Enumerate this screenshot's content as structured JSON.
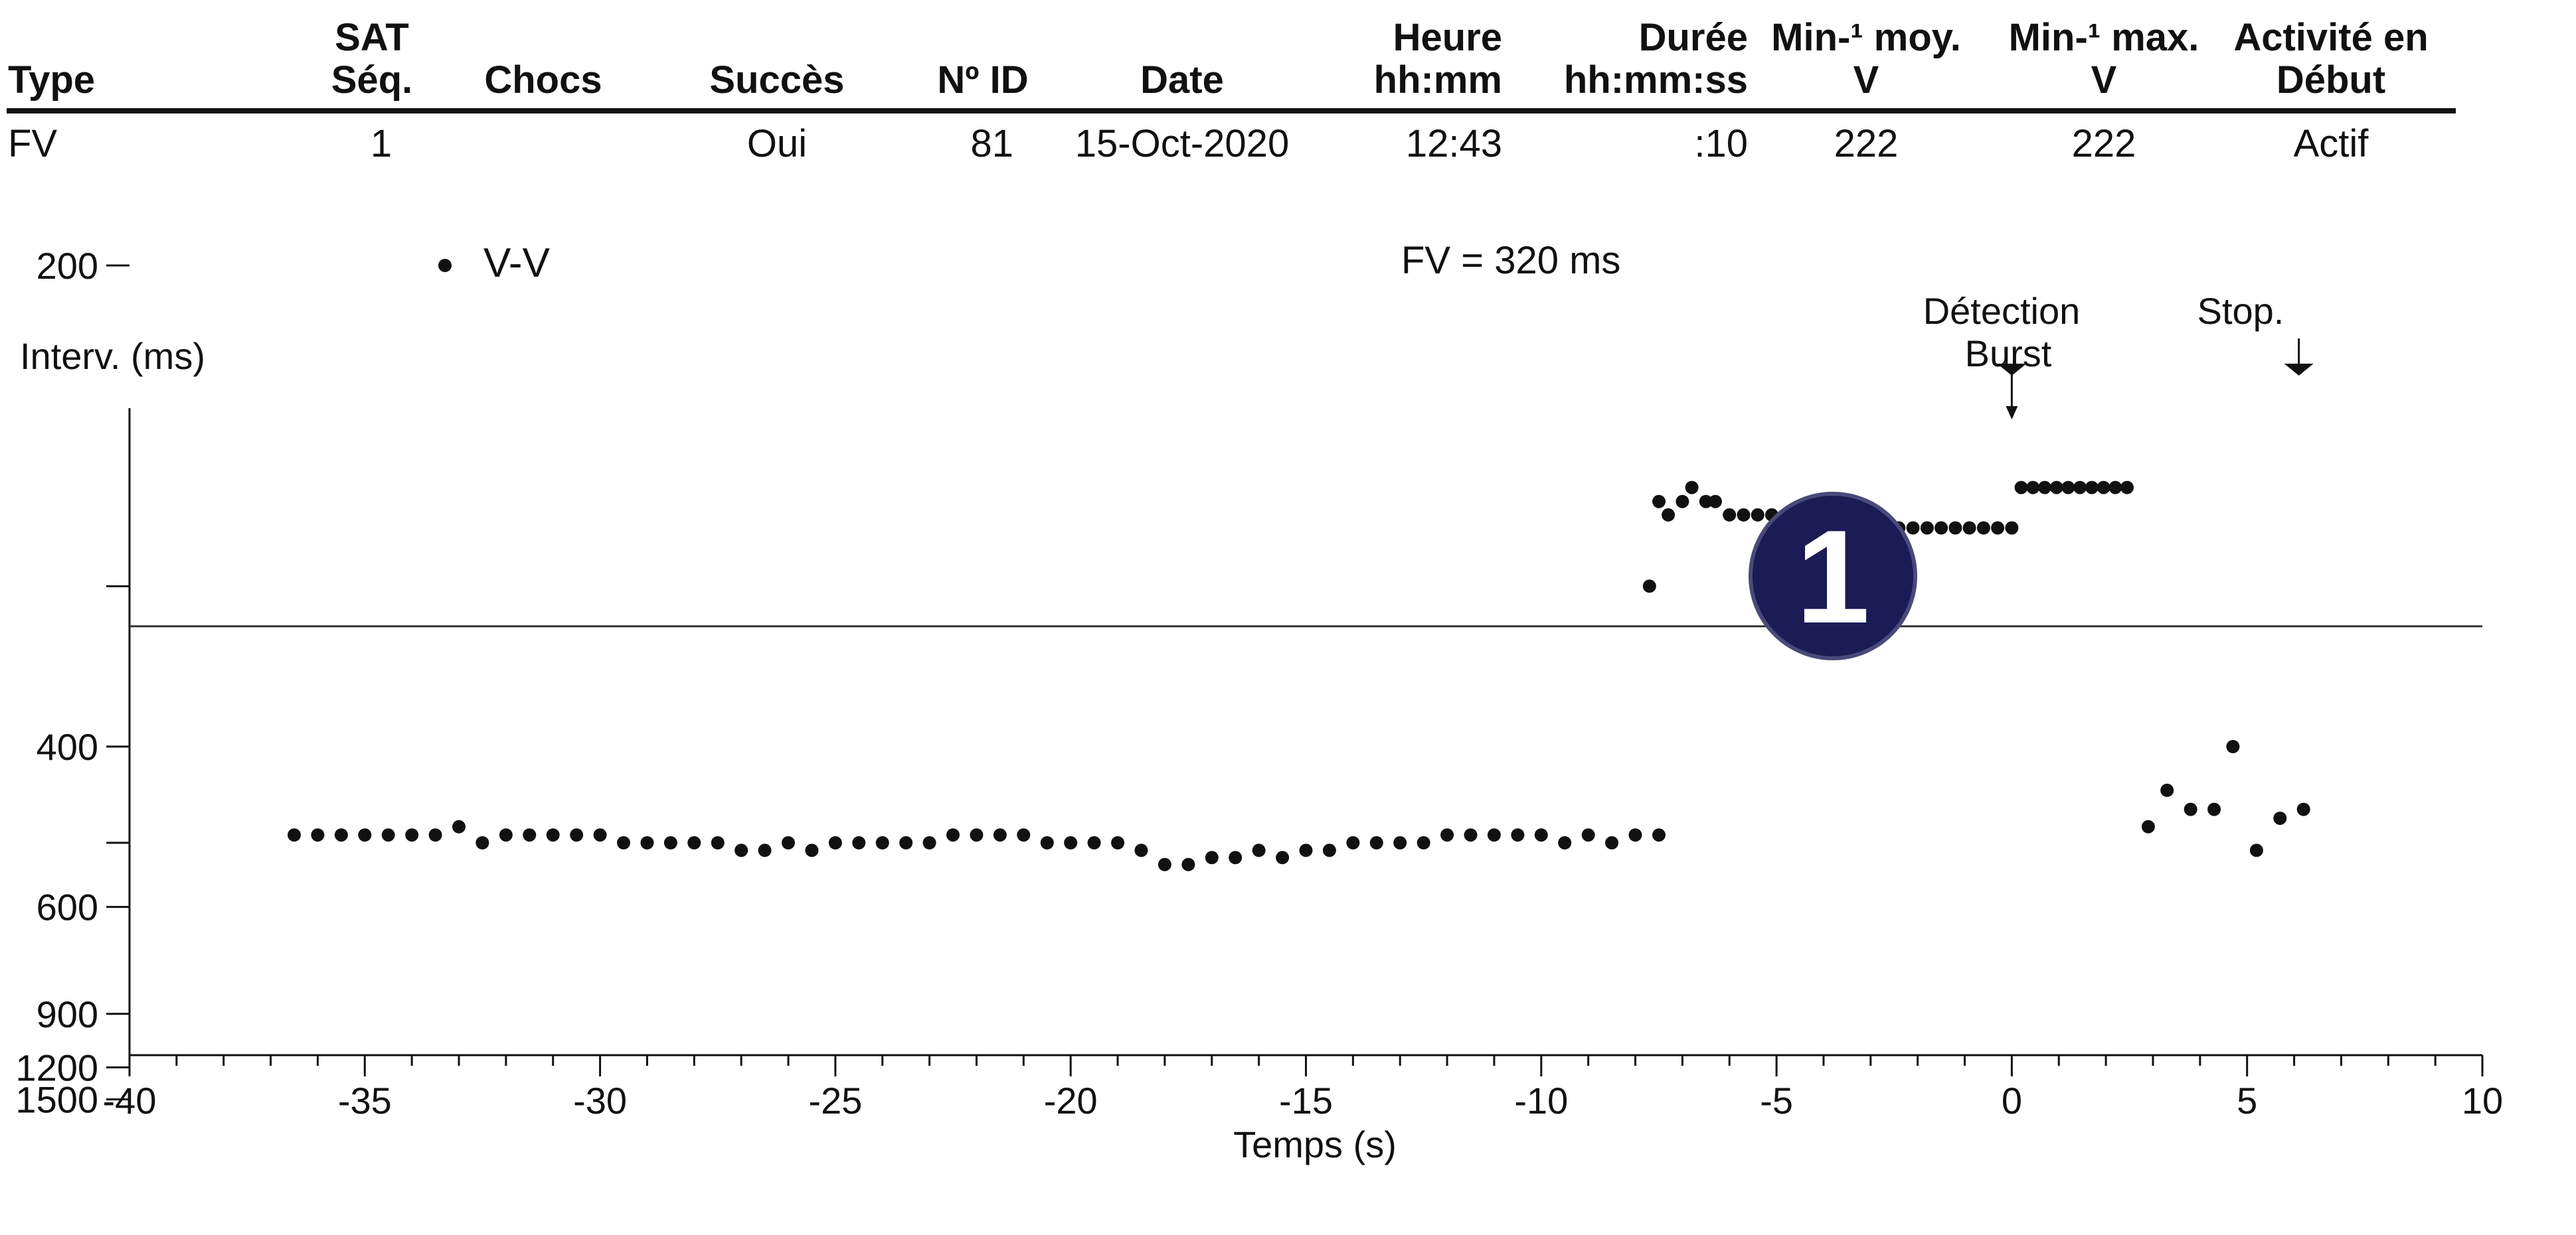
{
  "table": {
    "headers": [
      {
        "line1": "",
        "line2": "Type"
      },
      {
        "line1": "SAT",
        "line2": "Séq."
      },
      {
        "line1": "",
        "line2": "Chocs"
      },
      {
        "line1": "",
        "line2": "Succès"
      },
      {
        "line1": "",
        "line2": "Nº ID"
      },
      {
        "line1": "",
        "line2": "Date"
      },
      {
        "line1": "Heure",
        "line2": "hh:mm"
      },
      {
        "line1": "Durée",
        "line2": "hh:mm:ss"
      },
      {
        "line1": "Min-¹ moy.",
        "line2": "V"
      },
      {
        "line1": "Min-¹ max.",
        "line2": "V"
      },
      {
        "line1": "Activité en",
        "line2": "Début"
      }
    ],
    "row": [
      "FV",
      "1",
      "",
      "Oui",
      "81",
      "15-Oct-2020",
      "12:43",
      ":10",
      "222",
      "222",
      "Actif"
    ]
  },
  "legend": {
    "label": "V-V"
  },
  "fv_label": "FV = 320 ms",
  "badge": {
    "number": "1",
    "color": "#1b1b55"
  },
  "chart_data": {
    "type": "scatter",
    "xlabel": "Temps (s)",
    "ylabel": "Interv. (ms)",
    "xlim": [
      -40,
      10
    ],
    "xticks": [
      -40,
      -35,
      -30,
      -25,
      -20,
      -15,
      -10,
      -5,
      0,
      5,
      10
    ],
    "yscale": "reciprocal (rate-linear)",
    "ylim": [
      1500,
      150
    ],
    "yticks": [
      1500,
      1200,
      900,
      600,
      400,
      200
    ],
    "threshold": {
      "value": 320,
      "label": "FV = 320 ms"
    },
    "annotations": [
      {
        "text_lines": [
          "Détection",
          "Burst"
        ],
        "x": 0
      },
      {
        "text_lines": [
          "Stop."
        ],
        "x": 6.1
      }
    ],
    "series": [
      {
        "name": "V-V",
        "points": [
          [
            -36.5,
            490
          ],
          [
            -36,
            490
          ],
          [
            -35.5,
            490
          ],
          [
            -35,
            490
          ],
          [
            -34.5,
            490
          ],
          [
            -34,
            490
          ],
          [
            -33.5,
            490
          ],
          [
            -33,
            480
          ],
          [
            -32.5,
            500
          ],
          [
            -32,
            490
          ],
          [
            -31.5,
            490
          ],
          [
            -31,
            490
          ],
          [
            -30.5,
            490
          ],
          [
            -30,
            490
          ],
          [
            -29.5,
            500
          ],
          [
            -29,
            500
          ],
          [
            -28.5,
            500
          ],
          [
            -28,
            500
          ],
          [
            -27.5,
            500
          ],
          [
            -27,
            510
          ],
          [
            -26.5,
            510
          ],
          [
            -26,
            500
          ],
          [
            -25.5,
            510
          ],
          [
            -25,
            500
          ],
          [
            -24.5,
            500
          ],
          [
            -24,
            500
          ],
          [
            -23.5,
            500
          ],
          [
            -23,
            500
          ],
          [
            -22.5,
            490
          ],
          [
            -22,
            490
          ],
          [
            -21.5,
            490
          ],
          [
            -21,
            490
          ],
          [
            -20.5,
            500
          ],
          [
            -20,
            500
          ],
          [
            -19.5,
            500
          ],
          [
            -19,
            500
          ],
          [
            -18.5,
            510
          ],
          [
            -18,
            530
          ],
          [
            -17.5,
            530
          ],
          [
            -17,
            520
          ],
          [
            -16.5,
            520
          ],
          [
            -16,
            510
          ],
          [
            -15.5,
            520
          ],
          [
            -15,
            510
          ],
          [
            -14.5,
            510
          ],
          [
            -14,
            500
          ],
          [
            -13.5,
            500
          ],
          [
            -13,
            500
          ],
          [
            -12.5,
            500
          ],
          [
            -12,
            490
          ],
          [
            -11.5,
            490
          ],
          [
            -11,
            490
          ],
          [
            -10.5,
            490
          ],
          [
            -10,
            490
          ],
          [
            -9.5,
            500
          ],
          [
            -9,
            490
          ],
          [
            -8.5,
            500
          ],
          [
            -8,
            490
          ],
          [
            -7.5,
            490
          ],
          [
            -7.7,
            300
          ],
          [
            -7.5,
            265
          ],
          [
            -7.3,
            270
          ],
          [
            -7,
            265
          ],
          [
            -6.8,
            260
          ],
          [
            -6.5,
            265
          ],
          [
            -6.3,
            265
          ],
          [
            -6,
            270
          ],
          [
            -5.7,
            270
          ],
          [
            -5.4,
            270
          ],
          [
            -5.1,
            270
          ],
          [
            -4.8,
            270
          ],
          [
            -4.5,
            270
          ],
          [
            -4.2,
            275
          ],
          [
            -3.9,
            270
          ],
          [
            -3.6,
            275
          ],
          [
            -3.3,
            270
          ],
          [
            -3,
            275
          ],
          [
            -2.7,
            275
          ],
          [
            -2.4,
            275
          ],
          [
            -2.1,
            275
          ],
          [
            -1.8,
            275
          ],
          [
            -1.5,
            275
          ],
          [
            -1.2,
            275
          ],
          [
            -0.9,
            275
          ],
          [
            -0.6,
            275
          ],
          [
            -0.3,
            275
          ],
          [
            0,
            275
          ],
          [
            0.2,
            260
          ],
          [
            0.45,
            260
          ],
          [
            0.7,
            260
          ],
          [
            0.95,
            260
          ],
          [
            1.2,
            260
          ],
          [
            1.45,
            260
          ],
          [
            1.7,
            260
          ],
          [
            1.95,
            260
          ],
          [
            2.2,
            260
          ],
          [
            2.45,
            260
          ],
          [
            2.9,
            480
          ],
          [
            3.3,
            440
          ],
          [
            3.8,
            460
          ],
          [
            4.3,
            460
          ],
          [
            4.7,
            400
          ],
          [
            5.2,
            510
          ],
          [
            5.7,
            470
          ],
          [
            6.2,
            460
          ]
        ]
      }
    ]
  }
}
